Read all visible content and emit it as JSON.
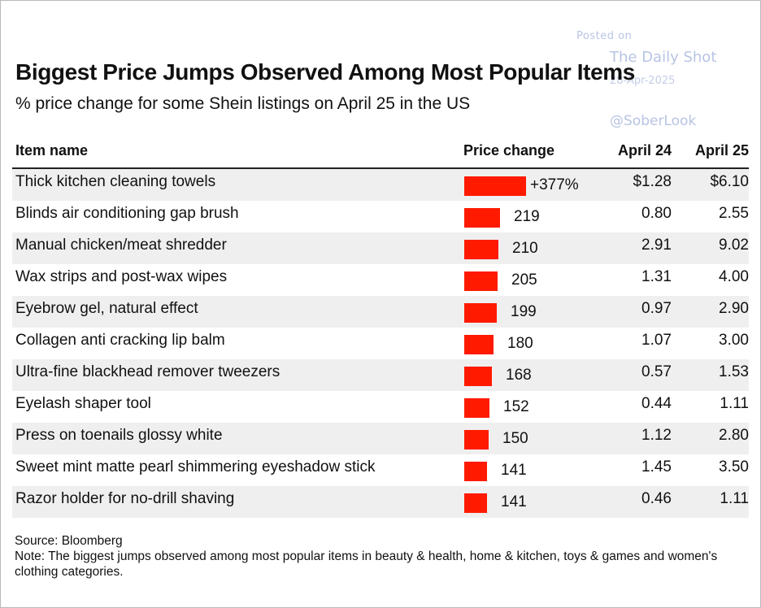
{
  "watermark": {
    "posted": "Posted on",
    "name": "The Daily Shot",
    "date": "28-Apr-2025",
    "handle": "@SoberLook"
  },
  "title": "Biggest Price Jumps Observed Among Most Popular Items",
  "subtitle": "% price change for some Shein listings on April 25 in the US",
  "columns": {
    "item": "Item name",
    "change": "Price change",
    "april24": "April 24",
    "april25": "April 25"
  },
  "colors": {
    "bar": "#ff1a00",
    "row_shade": "#efefef"
  },
  "chart_data": {
    "type": "table",
    "title": "Biggest Price Jumps Observed Among Most Popular Items",
    "subtitle": "% price change for some Shein listings on April 25 in the US",
    "columns": [
      "Item name",
      "Price change",
      "April 24",
      "April 25"
    ],
    "rows": [
      {
        "name": "Thick kitchen cleaning towels",
        "change": 377,
        "change_label": "+377%",
        "april24": "$1.28",
        "april25": "$6.10"
      },
      {
        "name": "Blinds air conditioning gap brush",
        "change": 219,
        "change_label": "219",
        "april24": "0.80",
        "april25": "2.55"
      },
      {
        "name": "Manual chicken/meat shredder",
        "change": 210,
        "change_label": "210",
        "april24": "2.91",
        "april25": "9.02"
      },
      {
        "name": "Wax strips and post-wax wipes",
        "change": 205,
        "change_label": "205",
        "april24": "1.31",
        "april25": "4.00"
      },
      {
        "name": "Eyebrow gel, natural effect",
        "change": 199,
        "change_label": "199",
        "april24": "0.97",
        "april25": "2.90"
      },
      {
        "name": "Collagen anti cracking lip balm",
        "change": 180,
        "change_label": "180",
        "april24": "1.07",
        "april25": "3.00"
      },
      {
        "name": "Ultra-fine blackhead remover tweezers",
        "change": 168,
        "change_label": "168",
        "april24": "0.57",
        "april25": "1.53"
      },
      {
        "name": "Eyelash shaper tool",
        "change": 152,
        "change_label": "152",
        "april24": "0.44",
        "april25": "1.11"
      },
      {
        "name": "Press on toenails glossy white",
        "change": 150,
        "change_label": "150",
        "april24": "1.12",
        "april25": "2.80"
      },
      {
        "name": "Sweet mint matte pearl shimmering eyeshadow stick",
        "change": 141,
        "change_label": "141",
        "april24": "1.45",
        "april25": "3.50"
      },
      {
        "name": "Razor holder for no-drill shaving",
        "change": 141,
        "change_label": "141",
        "april24": "0.46",
        "april25": "1.11"
      }
    ]
  },
  "footer": {
    "source": "Source: Bloomberg",
    "note": "Note: The biggest jumps observed among most popular items in beauty & health, home & kitchen, toys & games and women's clothing categories."
  }
}
